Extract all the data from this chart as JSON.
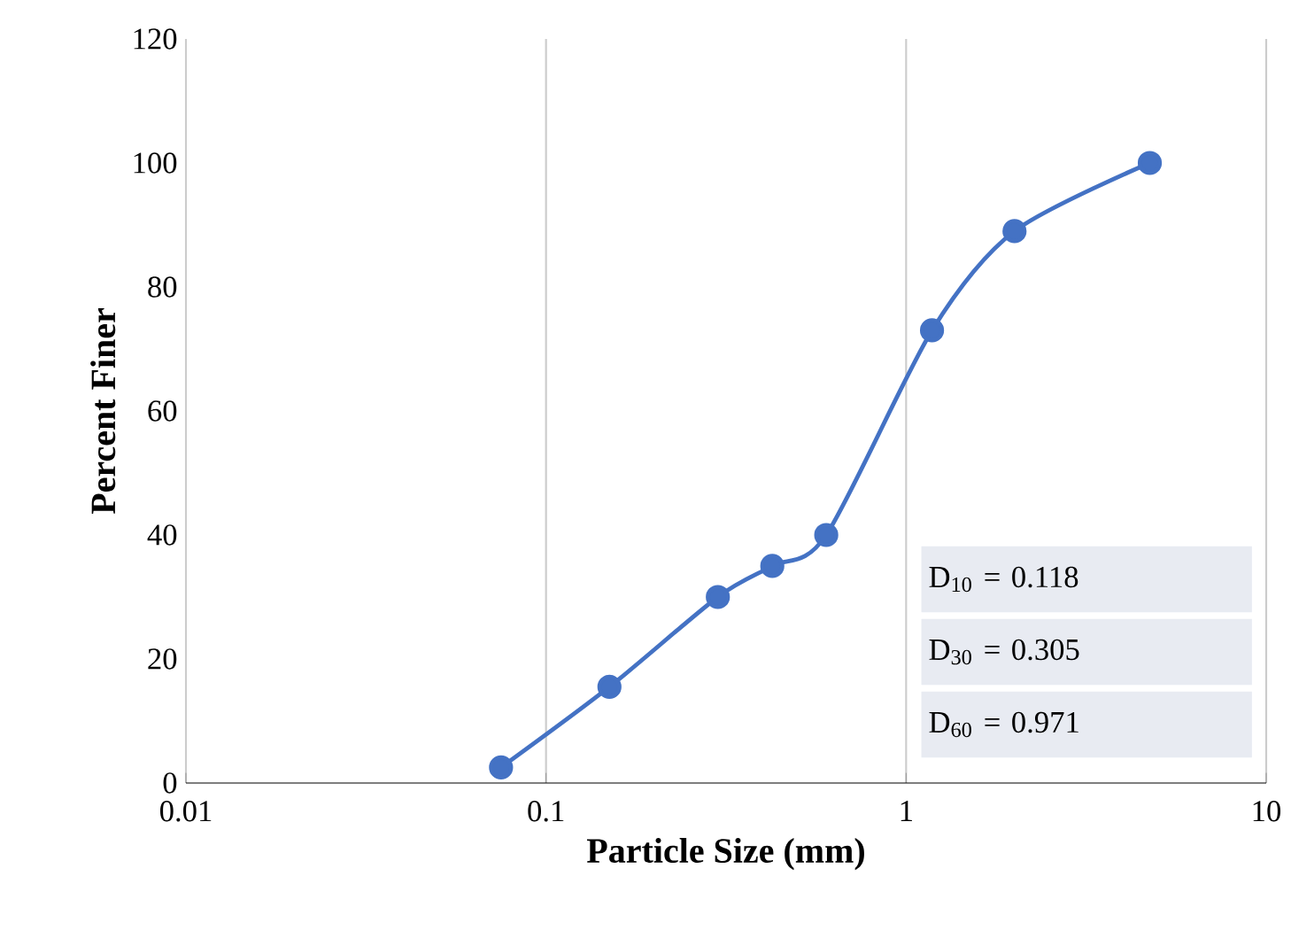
{
  "chart_data": {
    "type": "line",
    "xlabel": "Particle Size (mm)",
    "ylabel": "Percent Finer",
    "x": [
      0.075,
      0.15,
      0.3,
      0.425,
      0.6,
      1.18,
      2.0,
      4.75
    ],
    "values": [
      2.5,
      15.5,
      30,
      35,
      40,
      73,
      89,
      100
    ],
    "color": "#4472c4",
    "marker": "circle",
    "line_style": "solid",
    "log": "x",
    "xlim": [
      0.01,
      10
    ],
    "xticks": [
      0.01,
      0.1,
      1,
      10
    ],
    "ylim": [
      0,
      120
    ],
    "yticks": [
      0,
      20,
      40,
      60,
      80,
      100,
      120
    ],
    "grid": "x",
    "annotations": [
      "D$_{10}$ = 0.118",
      "D$_{30}$ = 0.305",
      "D$_{60}$ = 0.971"
    ]
  }
}
